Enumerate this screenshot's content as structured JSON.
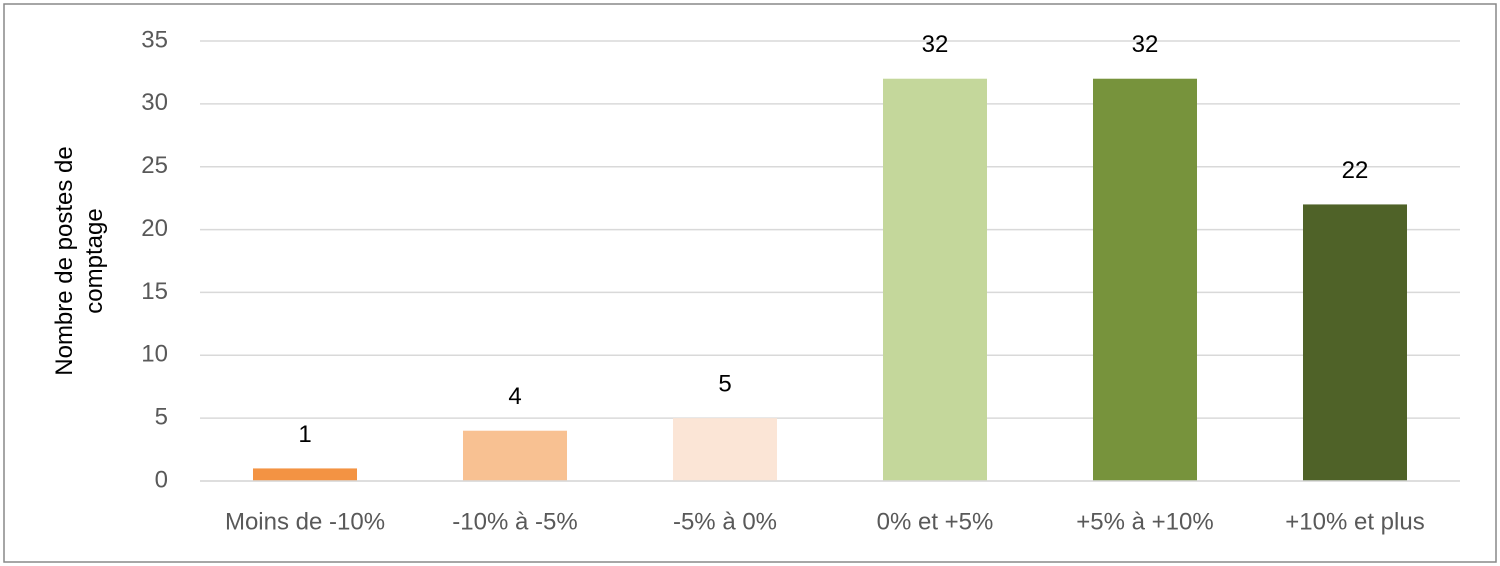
{
  "chart_data": {
    "type": "bar",
    "ylabel": "Nombre de postes de comptage",
    "categories": [
      "Moins de -10%",
      "-10% à -5%",
      "-5% à 0%",
      "0% et +5%",
      "+5% à +10%",
      "+10% et plus"
    ],
    "values": [
      1,
      4,
      5,
      32,
      32,
      22
    ],
    "colors": [
      "#f39343",
      "#f8c192",
      "#fbe5d6",
      "#c4d79b",
      "#77933c",
      "#4f6228"
    ],
    "ylim": [
      0,
      35
    ],
    "yticks": [
      0,
      5,
      10,
      15,
      20,
      25,
      30,
      35
    ],
    "grid": true
  }
}
